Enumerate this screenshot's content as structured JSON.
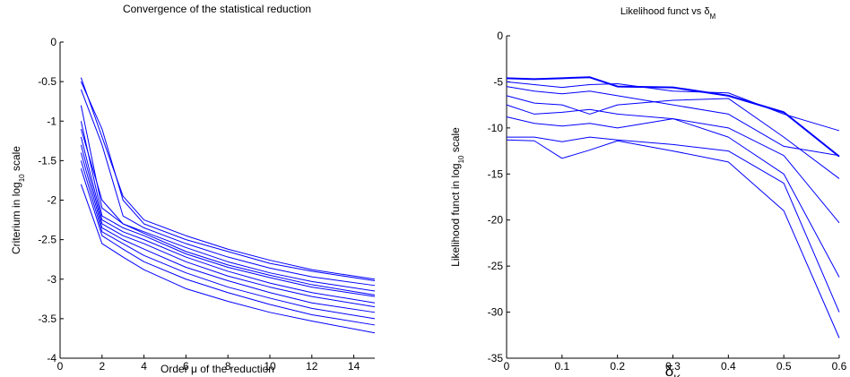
{
  "chart_data": [
    {
      "type": "line",
      "title": "Convergence of the statistical reduction",
      "xlabel": "Order μ of the reduction",
      "ylabel": [
        "Criterium in log",
        "10",
        " scale"
      ],
      "x": [
        1,
        2,
        3,
        4,
        6,
        8,
        10,
        12,
        15
      ],
      "xlim": [
        0,
        15
      ],
      "xticks": [
        0,
        2,
        4,
        6,
        8,
        10,
        12,
        14
      ],
      "ylim": [
        -4,
        0
      ],
      "yticks": [
        -4,
        -3.5,
        -3,
        -2.5,
        -2,
        -1.5,
        -1,
        -0.5,
        0
      ],
      "series": [
        {
          "color": "#0000ff",
          "width": 1,
          "values": [
            -0.5,
            -1.1,
            -2.0,
            -2.3,
            -2.5,
            -2.65,
            -2.8,
            -2.9,
            -3.02
          ]
        },
        {
          "color": "#0000ff",
          "width": 1,
          "values": [
            -0.6,
            -1.3,
            -2.2,
            -2.35,
            -2.55,
            -2.72,
            -2.86,
            -2.97,
            -3.08
          ]
        },
        {
          "color": "#0000ff",
          "width": 1,
          "values": [
            -0.8,
            -2.1,
            -2.3,
            -2.4,
            -2.6,
            -2.78,
            -2.92,
            -3.03,
            -3.15
          ]
        },
        {
          "color": "#0000ff",
          "width": 1,
          "values": [
            -1.0,
            -2.2,
            -2.35,
            -2.45,
            -2.68,
            -2.85,
            -2.98,
            -3.1,
            -3.22
          ]
        },
        {
          "color": "#0000ff",
          "width": 1,
          "values": [
            -1.2,
            -2.25,
            -2.4,
            -2.5,
            -2.72,
            -2.9,
            -3.05,
            -3.17,
            -3.3
          ]
        },
        {
          "color": "#0000ff",
          "width": 1,
          "values": [
            -1.3,
            -2.3,
            -2.45,
            -2.55,
            -2.78,
            -2.96,
            -3.1,
            -3.22,
            -3.35
          ]
        },
        {
          "color": "#0000ff",
          "width": 1,
          "values": [
            -1.4,
            -2.35,
            -2.5,
            -2.62,
            -2.85,
            -3.02,
            -3.17,
            -3.3,
            -3.42
          ]
        },
        {
          "color": "#0000ff",
          "width": 1,
          "values": [
            -1.5,
            -2.4,
            -2.55,
            -2.7,
            -2.92,
            -3.1,
            -3.24,
            -3.37,
            -3.5
          ]
        },
        {
          "color": "#0000ff",
          "width": 1,
          "values": [
            -1.6,
            -2.45,
            -2.62,
            -2.78,
            -3.0,
            -3.17,
            -3.32,
            -3.45,
            -3.58
          ]
        },
        {
          "color": "#0000ff",
          "width": 1,
          "values": [
            -1.8,
            -2.55,
            -2.72,
            -2.88,
            -3.12,
            -3.28,
            -3.42,
            -3.53,
            -3.68
          ]
        },
        {
          "color": "#0000ff",
          "width": 1,
          "values": [
            -0.45,
            -1.2,
            -1.95,
            -2.25,
            -2.45,
            -2.62,
            -2.76,
            -2.88,
            -3.0
          ]
        },
        {
          "color": "#0000ff",
          "width": 1,
          "values": [
            -1.1,
            -2.0,
            -2.3,
            -2.42,
            -2.65,
            -2.82,
            -2.95,
            -3.07,
            -3.2
          ]
        }
      ]
    },
    {
      "type": "line",
      "title": [
        "Likelihood funct vs δ",
        "M"
      ],
      "xlabel": [
        "δ",
        "K"
      ],
      "ylabel": [
        "Likelihood funct in log",
        "10",
        " scale"
      ],
      "x": [
        0,
        0.05,
        0.1,
        0.15,
        0.2,
        0.3,
        0.4,
        0.5,
        0.6
      ],
      "xlim": [
        0,
        0.6
      ],
      "xticks": [
        0,
        0.1,
        0.2,
        0.3,
        0.4,
        0.5,
        0.6
      ],
      "ylim": [
        -35,
        0
      ],
      "yticks": [
        -35,
        -30,
        -25,
        -20,
        -15,
        -10,
        -5,
        0
      ],
      "series": [
        {
          "color": "#0000ff",
          "width": 2,
          "values": [
            -4.6,
            -4.7,
            -4.6,
            -4.5,
            -5.5,
            -5.6,
            -6.5,
            -8.3,
            -13.1
          ]
        },
        {
          "color": "#0000ff",
          "width": 1,
          "values": [
            -5,
            -5.3,
            -5.6,
            -5.3,
            -5.2,
            -6,
            -6.2,
            -8.5,
            -10.3
          ]
        },
        {
          "color": "#0000ff",
          "width": 1,
          "values": [
            -5.5,
            -6,
            -6.3,
            -6,
            -6.5,
            -7.5,
            -8.5,
            -12,
            -13
          ]
        },
        {
          "color": "#0000ff",
          "width": 1,
          "values": [
            -6.5,
            -7.3,
            -7.5,
            -8.5,
            -7.5,
            -7,
            -6.8,
            -11,
            -15.5
          ]
        },
        {
          "color": "#0000ff",
          "width": 1,
          "values": [
            -7.5,
            -8.5,
            -8.3,
            -8,
            -8.5,
            -9,
            -10,
            -13,
            -20.3
          ]
        },
        {
          "color": "#0000ff",
          "width": 1,
          "values": [
            -8.8,
            -9.5,
            -9.8,
            -9.5,
            -10,
            -9,
            -11,
            -15,
            -26.2
          ]
        },
        {
          "color": "#0000ff",
          "width": 1,
          "values": [
            -11,
            -11,
            -11.5,
            -11,
            -11.3,
            -11.8,
            -12.5,
            -16,
            -30
          ]
        },
        {
          "color": "#0000ff",
          "width": 1,
          "values": [
            -11.3,
            -11.4,
            -13.3,
            -12.4,
            -11.4,
            -12.5,
            -13.7,
            -19,
            -32.8
          ]
        }
      ]
    }
  ]
}
